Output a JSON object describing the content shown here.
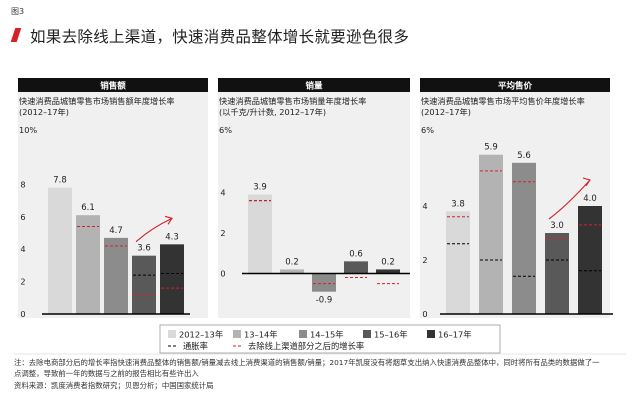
{
  "figure_label": "图3",
  "title": "如果去除线上渠道，快速消费品整体增长就要逊色很多",
  "legend": {
    "years": [
      {
        "label": "2012–13年",
        "color": "#d9d9d9"
      },
      {
        "label": "13–14年",
        "color": "#b3b3b3"
      },
      {
        "label": "14–15年",
        "color": "#8c8c8c"
      },
      {
        "label": "15–16年",
        "color": "#595959"
      },
      {
        "label": "16–17年",
        "color": "#333333"
      }
    ],
    "inflation_label": "通胀率",
    "offline_label": "去除线上渠道部分之后的增长率"
  },
  "notes": [
    "注：去除电商部分后的增长率指快速消费品整体的销售额/销量减去线上消费渠道的销售额/销量；2017年凯度没有将烟草支出纳入快速消费品整体中，同时将所有品类的数据做了一",
    "点调整，导致前一年的数据与之前的报告相比有些许出入",
    "资料来源：凯度消费者指数研究；贝恩分析；中国国家统计局"
  ],
  "chart_data": [
    {
      "type": "bar",
      "panel_header": "销售额",
      "title": "快速消费品城镇零售市场销售额年度增长率",
      "subtitle": "(2012–17年)",
      "unit_label": "10%",
      "categories": [
        "2012–13年",
        "13–14年",
        "14–15年",
        "15–16年",
        "16–17年"
      ],
      "values": [
        7.8,
        6.1,
        4.7,
        3.6,
        4.3
      ],
      "inflation": [
        null,
        5.4,
        null,
        2.4,
        2.5
      ],
      "offline_growth": [
        null,
        5.4,
        4.2,
        1.2,
        1.6
      ],
      "ylim": [
        0,
        10
      ],
      "yticks": [
        0,
        2,
        4,
        6,
        8
      ],
      "arrow": true
    },
    {
      "type": "bar",
      "panel_header": "销量",
      "title": "快速消费品城镇零售市场销量年度增长率",
      "subtitle": "(以千克/升计数, 2012–17年)",
      "unit_label": "6%",
      "categories": [
        "2012–13年",
        "13–14年",
        "14–15年",
        "15–16年",
        "16–17年"
      ],
      "values": [
        3.9,
        0.2,
        -0.9,
        0.6,
        0.2
      ],
      "inflation": [
        3.6,
        null,
        null,
        null,
        null
      ],
      "offline_growth": [
        3.6,
        null,
        -0.5,
        -0.2,
        -0.5
      ],
      "ylim": [
        -2,
        6
      ],
      "yticks": [
        0,
        2,
        4
      ],
      "arrow": false
    },
    {
      "type": "bar",
      "panel_header": "平均售价",
      "title": "快速消费品城镇零售市场平均售价年度增长率",
      "subtitle": "(2012–17年)",
      "unit_label": "6%",
      "categories": [
        "2012–13年",
        "13–14年",
        "14–15年",
        "15–16年",
        "16–17年"
      ],
      "values": [
        3.8,
        5.9,
        5.6,
        3.0,
        4.0
      ],
      "inflation": [
        2.6,
        2.0,
        1.4,
        2.0,
        1.6
      ],
      "offline_growth": [
        3.6,
        5.3,
        4.9,
        2.8,
        3.3
      ],
      "ylim": [
        0,
        6
      ],
      "yticks": [
        0,
        2,
        4
      ],
      "arrow": true
    }
  ]
}
